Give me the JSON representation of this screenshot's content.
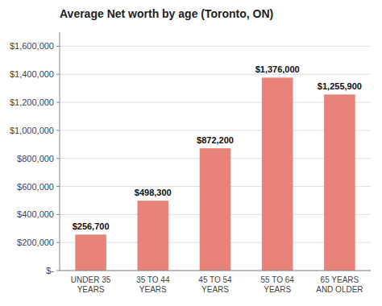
{
  "chart_data": {
    "type": "bar",
    "title": "Average Net worth by age (Toronto, ON)",
    "categories": [
      "UNDER 35\nYEARS",
      "35 TO 44\nYEARS",
      "45 TO 54\nYEARS",
      "55 TO 64\nYEARS",
      "65 YEARS\nAND OLDER"
    ],
    "values": [
      256700,
      498300,
      872200,
      1376000,
      1255900
    ],
    "value_labels": [
      "$256,700",
      "$498,300",
      "$872,200",
      "$1,376,000",
      "$1,255,900"
    ],
    "color": "#E8837A",
    "ylim": [
      0,
      1700000
    ],
    "yticks": [
      {
        "value": 0,
        "label": "$-"
      },
      {
        "value": 200000,
        "label": "$200,000"
      },
      {
        "value": 400000,
        "label": "$400,000"
      },
      {
        "value": 600000,
        "label": "$600,000"
      },
      {
        "value": 800000,
        "label": "$800,000"
      },
      {
        "value": 1000000,
        "label": "$1,000,000"
      },
      {
        "value": 1200000,
        "label": "$1,200,000"
      },
      {
        "value": 1400000,
        "label": "$1,400,000"
      },
      {
        "value": 1600000,
        "label": "$1,600,000"
      }
    ],
    "grid": true,
    "data_labels": true
  }
}
